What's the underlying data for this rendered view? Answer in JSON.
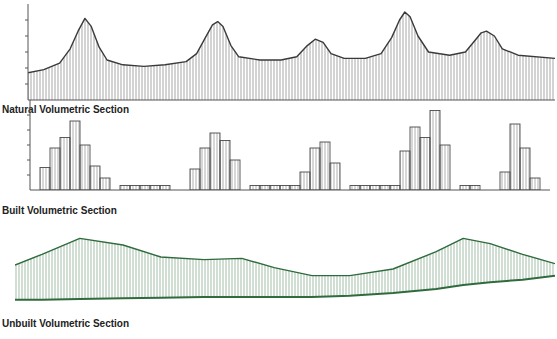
{
  "chart_data": [
    {
      "type": "area",
      "title": "Natural Volumetric Section",
      "color": "#3a3a3a",
      "x": [
        0,
        3,
        6,
        8,
        9.5,
        10.8,
        12,
        13.5,
        15,
        18,
        22,
        26,
        30,
        32,
        33.5,
        35,
        36,
        37,
        38.5,
        40,
        44,
        48,
        51,
        53,
        54.5,
        56,
        57.5,
        60,
        64,
        67,
        69,
        70.5,
        71.5,
        72.5,
        74,
        76,
        80,
        83,
        85,
        86,
        87,
        88.5,
        90,
        93,
        100
      ],
      "values": [
        1.7,
        1.9,
        2.3,
        3.2,
        4.3,
        5.1,
        4.6,
        3.3,
        2.5,
        2.2,
        2.1,
        2.2,
        2.4,
        2.9,
        3.8,
        4.7,
        4.9,
        4.6,
        3.4,
        2.7,
        2.5,
        2.5,
        2.7,
        3.4,
        3.8,
        3.6,
        2.9,
        2.6,
        2.6,
        2.9,
        3.9,
        5.0,
        5.5,
        5.2,
        4.0,
        3.0,
        2.8,
        3.0,
        3.8,
        4.2,
        4.3,
        4.0,
        3.2,
        2.8,
        2.6
      ],
      "xlim": [
        0,
        100
      ],
      "ylim": [
        0,
        6
      ],
      "yticks": [
        1,
        2,
        3,
        4,
        5
      ],
      "tick_labels": false,
      "grid": false
    },
    {
      "type": "bar",
      "title": "Built Volumetric Section",
      "color": "#4a4a4a",
      "categories": [
        null,
        null,
        null,
        null,
        null,
        null,
        null,
        null,
        null,
        null,
        null,
        null,
        null,
        null,
        null,
        null,
        null,
        null,
        null,
        null,
        null,
        null,
        null,
        null,
        null,
        null,
        null,
        null,
        null,
        null,
        null,
        null,
        null,
        null,
        null,
        null,
        null,
        null,
        null,
        null,
        null,
        null,
        null,
        null,
        null,
        null,
        null,
        null,
        null,
        null,
        null,
        null
      ],
      "values": [
        0,
        1.5,
        2.8,
        3.5,
        4.6,
        3.0,
        1.6,
        0.8,
        0,
        0.3,
        0.3,
        0.3,
        0.3,
        0.3,
        0,
        0,
        1.4,
        2.8,
        3.8,
        3.3,
        2.0,
        0,
        0.3,
        0.3,
        0.3,
        0.3,
        0.3,
        1.2,
        2.8,
        3.2,
        1.8,
        0,
        0.3,
        0.3,
        0.3,
        0.3,
        0.3,
        2.6,
        4.2,
        3.5,
        5.3,
        3.0,
        0,
        0.3,
        0.3,
        0,
        0,
        1.2,
        4.4,
        2.8,
        0.8,
        0
      ],
      "ylim": [
        0,
        6
      ],
      "yticks": [
        1,
        2,
        3,
        4,
        5
      ],
      "tick_labels": false,
      "grid": false
    },
    {
      "type": "area",
      "title": "Unbuilt Volumetric Section",
      "color": "#2f6b3c",
      "x": [
        0,
        5,
        12,
        20,
        27,
        35,
        42,
        48,
        55,
        62,
        70,
        78,
        83,
        88,
        94,
        100
      ],
      "values": [
        3.0,
        3.8,
        5.0,
        4.5,
        3.6,
        3.4,
        3.5,
        2.8,
        2.2,
        2.2,
        2.7,
        4.0,
        5.0,
        4.6,
        3.8,
        3.1
      ],
      "baseline": [
        0.4,
        0.4,
        0.45,
        0.5,
        0.55,
        0.6,
        0.6,
        0.6,
        0.6,
        0.7,
        0.9,
        1.2,
        1.5,
        1.7,
        1.9,
        2.2
      ],
      "xlim": [
        0,
        100
      ],
      "ylim": [
        0,
        6
      ],
      "tick_labels": false,
      "grid": false
    }
  ]
}
